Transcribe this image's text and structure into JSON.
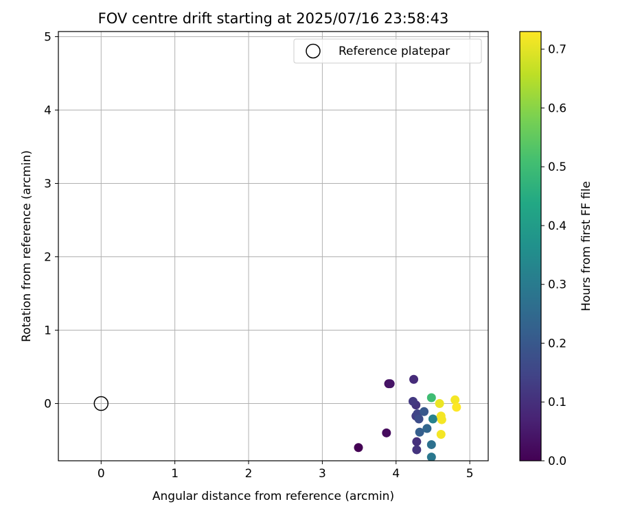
{
  "chart_data": {
    "type": "scatter",
    "title": "FOV centre drift starting at 2025/07/16 23:58:43",
    "xlabel": "Angular distance from reference (arcmin)",
    "ylabel": "Rotation from reference (arcmin)",
    "xlim": [
      -0.58,
      5.25
    ],
    "ylim": [
      -0.78,
      5.07
    ],
    "xticks": [
      "0",
      "1",
      "2",
      "3",
      "4",
      "5"
    ],
    "yticks": [
      "0",
      "1",
      "2",
      "3",
      "4",
      "5"
    ],
    "grid": true,
    "legend": {
      "position": "top-right",
      "entries": [
        "Reference platepar"
      ]
    },
    "reference_point": {
      "x": 0,
      "y": 0,
      "label": "Reference platepar"
    },
    "colorbar": {
      "label": "Hours from first FF file",
      "colormap": "viridis",
      "range": [
        0,
        0.73
      ],
      "ticks": [
        "0.0",
        "0.1",
        "0.2",
        "0.3",
        "0.4",
        "0.5",
        "0.6",
        "0.7"
      ]
    },
    "points": [
      {
        "x": 3.49,
        "y": -0.6,
        "c": 0.0
      },
      {
        "x": 3.87,
        "y": -0.4,
        "c": 0.02
      },
      {
        "x": 3.9,
        "y": 0.27,
        "c": 0.03
      },
      {
        "x": 3.92,
        "y": 0.27,
        "c": 0.04
      },
      {
        "x": 4.24,
        "y": 0.33,
        "c": 0.09
      },
      {
        "x": 4.28,
        "y": -0.52,
        "c": 0.1
      },
      {
        "x": 4.28,
        "y": -0.63,
        "c": 0.11
      },
      {
        "x": 4.27,
        "y": -0.02,
        "c": 0.11
      },
      {
        "x": 4.23,
        "y": 0.03,
        "c": 0.12
      },
      {
        "x": 4.27,
        "y": -0.17,
        "c": 0.13
      },
      {
        "x": 4.29,
        "y": -0.14,
        "c": 0.15
      },
      {
        "x": 4.31,
        "y": -0.21,
        "c": 0.17
      },
      {
        "x": 4.38,
        "y": -0.11,
        "c": 0.2
      },
      {
        "x": 4.32,
        "y": -0.39,
        "c": 0.22
      },
      {
        "x": 4.42,
        "y": -0.34,
        "c": 0.24
      },
      {
        "x": 4.48,
        "y": -0.56,
        "c": 0.27
      },
      {
        "x": 4.48,
        "y": -0.73,
        "c": 0.29
      },
      {
        "x": 4.5,
        "y": -0.21,
        "c": 0.32
      },
      {
        "x": 4.48,
        "y": 0.08,
        "c": 0.5
      },
      {
        "x": 4.59,
        "y": 0.0,
        "c": 0.71
      },
      {
        "x": 4.61,
        "y": -0.17,
        "c": 0.72
      },
      {
        "x": 4.62,
        "y": -0.22,
        "c": 0.72
      },
      {
        "x": 4.61,
        "y": -0.42,
        "c": 0.72
      },
      {
        "x": 4.8,
        "y": 0.05,
        "c": 0.72
      },
      {
        "x": 4.82,
        "y": -0.05,
        "c": 0.73
      }
    ]
  }
}
